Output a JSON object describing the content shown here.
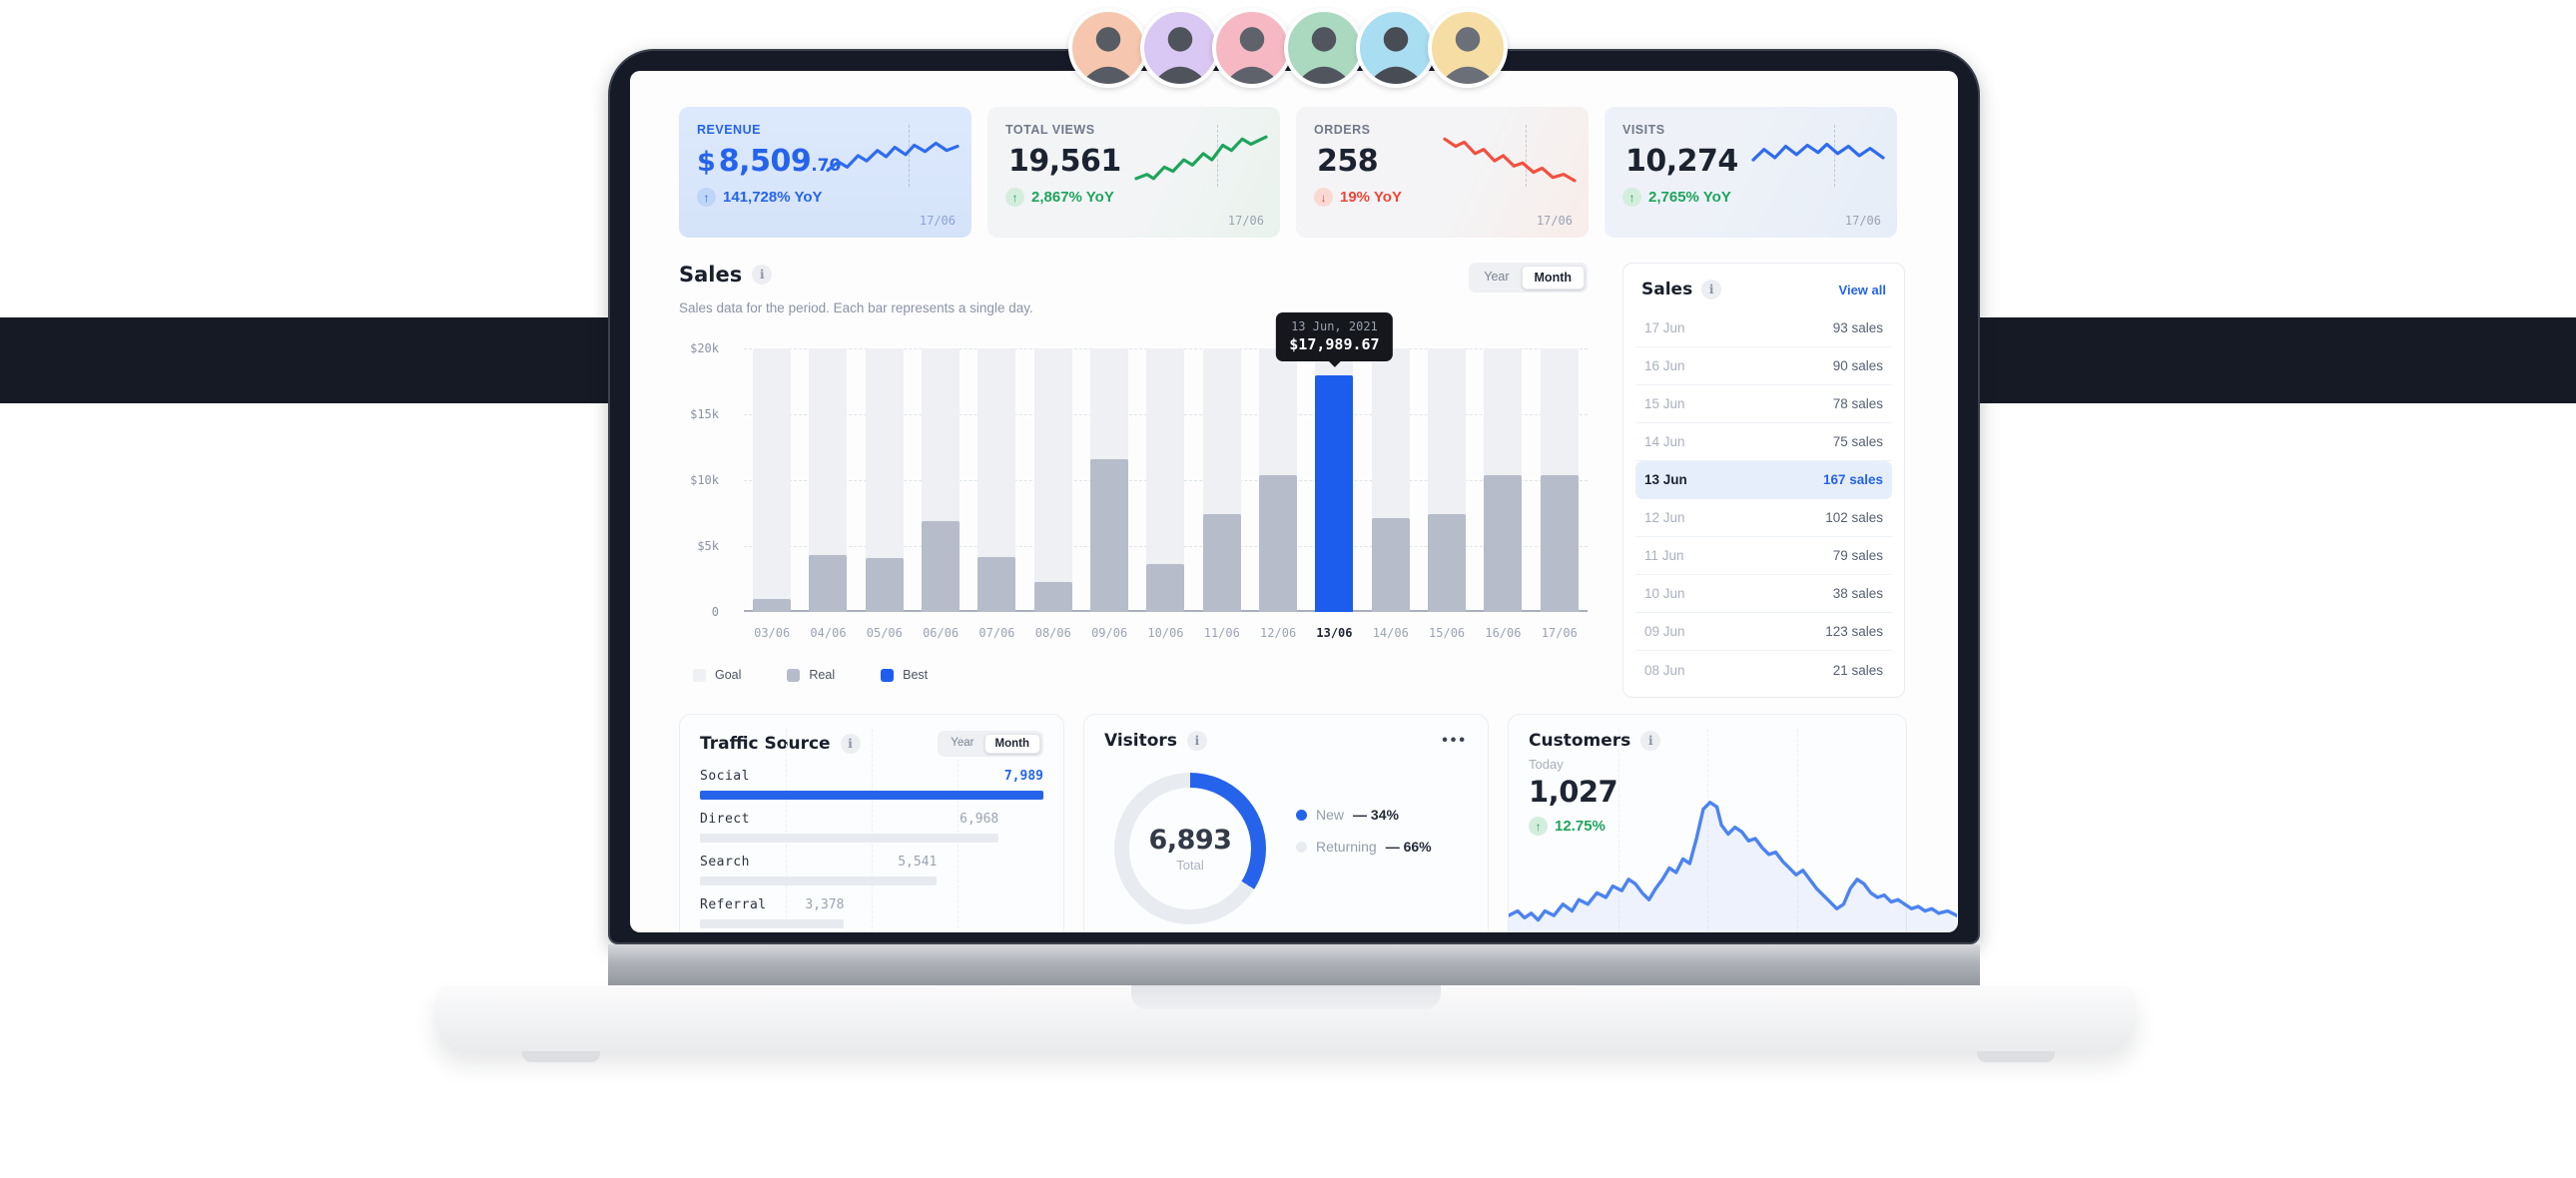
{
  "backdrop": {
    "band_color": "#151a24"
  },
  "avatars": [
    {
      "bg": "#f6c7ae"
    },
    {
      "bg": "#d9c7f4"
    },
    {
      "bg": "#f6b9c3"
    },
    {
      "bg": "#abd9c0"
    },
    {
      "bg": "#a9ddf1"
    },
    {
      "bg": "#f6dda4"
    }
  ],
  "stats": [
    {
      "label": "REVENUE",
      "prefix": "$",
      "value": "8,509",
      "cents": ".70",
      "delta": "141,728% YoY",
      "direction": "up",
      "date": "17/06",
      "theme": {
        "bg": "linear-gradient(180deg,#dde9fc,#d5e3fa)",
        "label": "#2563eb",
        "value": "#2563eb",
        "delta": "#2563eb",
        "icon_bg": "#bfd5f8",
        "icon": "#2563eb",
        "spark": "#2e6bee",
        "date": "#8aa2d6"
      }
    },
    {
      "label": "TOTAL VIEWS",
      "prefix": "",
      "value": "19,561",
      "cents": "",
      "delta": "2,867% YoY",
      "direction": "up",
      "date": "17/06",
      "theme": {
        "bg": "linear-gradient(115deg,#f3f4f6 55%,#e9f3ec 100%)",
        "label": "#707889",
        "value": "#1c2330",
        "delta": "#1ea45c",
        "icon_bg": "#d4eedd",
        "icon": "#1ea45c",
        "spark": "#1ea45c",
        "date": "#9aa3b2"
      }
    },
    {
      "label": "ORDERS",
      "prefix": "",
      "value": "258",
      "cents": "",
      "delta": "19% YoY",
      "direction": "down",
      "date": "17/06",
      "theme": {
        "bg": "linear-gradient(115deg,#f4f4f6 55%,#f8edea 100%)",
        "label": "#707889",
        "value": "#1c2330",
        "delta": "#ef4636",
        "icon_bg": "#fbd9d3",
        "icon": "#ef4636",
        "spark": "#f2503f",
        "date": "#9aa3b2"
      }
    },
    {
      "label": "VISITS",
      "prefix": "",
      "value": "10,274",
      "cents": "",
      "delta": "2,765% YoY",
      "direction": "up",
      "date": "17/06",
      "theme": {
        "bg": "linear-gradient(115deg,#eef2f8 40%,#e6edf8 100%)",
        "label": "#707889",
        "value": "#1c2330",
        "delta": "#1ea45c",
        "icon_bg": "#d4eedd",
        "icon": "#1ea45c",
        "spark": "#2e6bee",
        "date": "#9aa3b2"
      }
    }
  ],
  "chart_data": {
    "type": "bar",
    "categories": [
      "03/06",
      "04/06",
      "05/06",
      "06/06",
      "07/06",
      "08/06",
      "09/06",
      "10/06",
      "11/06",
      "12/06",
      "13/06",
      "14/06",
      "15/06",
      "16/06",
      "17/06"
    ],
    "series": [
      {
        "name": "Goal",
        "values": [
          20000,
          20000,
          20000,
          20000,
          20000,
          20000,
          20000,
          20000,
          20000,
          20000,
          20000,
          20000,
          20000,
          20000,
          20000
        ]
      },
      {
        "name": "Real",
        "values": [
          1000,
          4300,
          4100,
          6900,
          4200,
          2300,
          11600,
          3600,
          7400,
          10400,
          17989.67,
          7100,
          7400,
          10400,
          10400
        ]
      }
    ],
    "best_index": 10,
    "ylabel_ticks": [
      "$20k",
      "$15k",
      "$10k",
      "$5k",
      "0"
    ],
    "ylim": [
      0,
      20000
    ],
    "title": "Sales",
    "xlabel": "",
    "ylabel": "",
    "grid": "dashed-horizontal",
    "legend_position": "bottom-left"
  },
  "sales": {
    "title": "Sales",
    "subtitle": "Sales data for the period. Each bar represents a single day.",
    "toggle": {
      "options": [
        "Year",
        "Month"
      ],
      "selected": "Month"
    },
    "tooltip": {
      "date": "13 Jun, 2021",
      "value": "$17,989.67"
    },
    "legend": [
      {
        "label": "Goal",
        "color": "#eef0f4"
      },
      {
        "label": "Real",
        "color": "#b6bcc9"
      },
      {
        "label": "Best",
        "color": "#1d5ded"
      }
    ]
  },
  "sales_list": {
    "title": "Sales",
    "view_all": "View all",
    "rows": [
      {
        "date": "17 Jun",
        "value": "93 sales",
        "highlight": false
      },
      {
        "date": "16 Jun",
        "value": "90 sales",
        "highlight": false
      },
      {
        "date": "15 Jun",
        "value": "78 sales",
        "highlight": false
      },
      {
        "date": "14 Jun",
        "value": "75 sales",
        "highlight": false
      },
      {
        "date": "13 Jun",
        "value": "167 sales",
        "highlight": true
      },
      {
        "date": "12 Jun",
        "value": "102 sales",
        "highlight": false
      },
      {
        "date": "11 Jun",
        "value": "79 sales",
        "highlight": false
      },
      {
        "date": "10 Jun",
        "value": "38 sales",
        "highlight": false
      },
      {
        "date": "09 Jun",
        "value": "123 sales",
        "highlight": false
      },
      {
        "date": "08 Jun",
        "value": "21 sales",
        "highlight": false
      }
    ]
  },
  "traffic": {
    "title": "Traffic Source",
    "toggle": {
      "options": [
        "Year",
        "Month"
      ],
      "selected": "Month"
    },
    "rows": [
      {
        "label": "Social",
        "value": "7,989",
        "pct": 100,
        "active": true
      },
      {
        "label": "Direct",
        "value": "6,968",
        "pct": 87,
        "active": false
      },
      {
        "label": "Search",
        "value": "5,541",
        "pct": 69,
        "active": false
      },
      {
        "label": "Referral",
        "value": "3,378",
        "pct": 42,
        "active": false
      }
    ]
  },
  "visitors": {
    "title": "Visitors",
    "total": "6,893",
    "total_label": "Total",
    "new_pct_value": 34,
    "segments": [
      {
        "label": "New",
        "pct": "34%",
        "color": "#2563eb"
      },
      {
        "label": "Returning",
        "pct": "66%",
        "color": "#e8ebf0"
      }
    ]
  },
  "customers": {
    "title": "Customers",
    "period": "Today",
    "value": "1,027",
    "delta": "12.75%",
    "direction": "up",
    "line_color": "#4b83f0"
  }
}
